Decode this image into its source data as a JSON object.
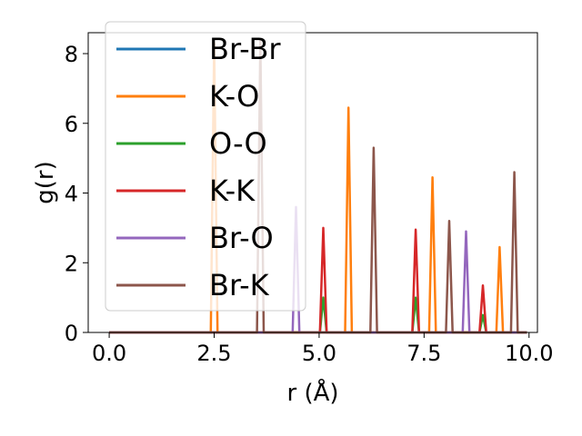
{
  "chart_data": {
    "type": "line",
    "title": "",
    "xlabel": "r (Å)",
    "ylabel": "g(r)",
    "xlim": [
      -0.5,
      10.2
    ],
    "ylim": [
      0,
      8.6
    ],
    "xticks": [
      "0.0",
      "2.5",
      "5.0",
      "7.5",
      "10.0"
    ],
    "xtick_values": [
      0.0,
      2.5,
      5.0,
      7.5,
      10.0
    ],
    "yticks": [
      "0",
      "2",
      "4",
      "6",
      "8"
    ],
    "ytick_values": [
      0,
      2,
      4,
      6,
      8
    ],
    "grid": false,
    "legend_position": "upper-left",
    "x_range": [
      0.0,
      9.95
    ],
    "series": [
      {
        "name": "Br-Br",
        "color": "#1f77b4",
        "peaks": []
      },
      {
        "name": "K-O",
        "color": "#ff7f0e",
        "peaks": [
          [
            2.5,
            8.3
          ],
          [
            5.7,
            6.45
          ],
          [
            7.7,
            4.45
          ],
          [
            9.3,
            2.45
          ]
        ]
      },
      {
        "name": "O-O",
        "color": "#2ca02c",
        "peaks": [
          [
            5.1,
            1.0
          ],
          [
            7.3,
            1.0
          ],
          [
            8.9,
            0.5
          ]
        ]
      },
      {
        "name": "K-K",
        "color": "#d62728",
        "peaks": [
          [
            5.1,
            3.0
          ],
          [
            7.3,
            2.95
          ],
          [
            8.9,
            1.35
          ]
        ]
      },
      {
        "name": "Br-O",
        "color": "#9467bd",
        "peaks": [
          [
            4.45,
            3.6
          ],
          [
            8.5,
            2.9
          ]
        ]
      },
      {
        "name": "Br-K",
        "color": "#8c564b",
        "peaks": [
          [
            3.6,
            8.4
          ],
          [
            6.3,
            5.3
          ],
          [
            8.1,
            3.2
          ],
          [
            9.65,
            4.6
          ]
        ]
      }
    ]
  }
}
